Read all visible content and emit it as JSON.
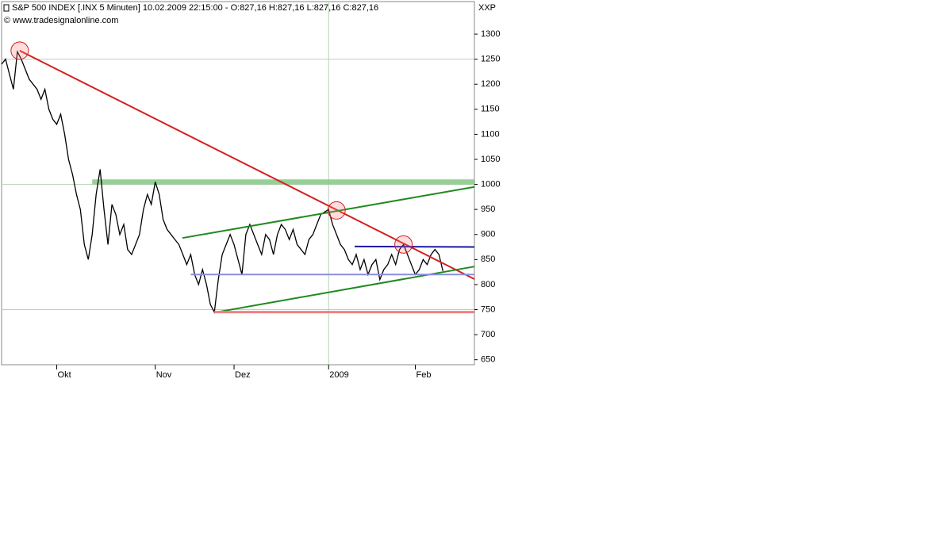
{
  "chart_data": {
    "type": "line",
    "title": "S&P 500 INDEX [.INX  5 Minuten] 10.02.2009 22:15:00 - O:827,16 H:827,16 L:827,16 C:827,16",
    "subtitle": "© www.tradesignalonline.com",
    "y_axis_label": "XXP",
    "xlim": [
      0,
      120
    ],
    "ylim": [
      640,
      1365
    ],
    "xticks": [
      {
        "value": 14,
        "label": "Okt"
      },
      {
        "value": 39,
        "label": "Nov"
      },
      {
        "value": 59,
        "label": "Dez"
      },
      {
        "value": 83,
        "label": "2009"
      },
      {
        "value": 105,
        "label": "Feb"
      }
    ],
    "yticks": [
      650,
      700,
      750,
      800,
      850,
      900,
      950,
      1000,
      1050,
      1100,
      1150,
      1200,
      1250,
      1300
    ],
    "grid_x": [
      83
    ],
    "grid_y": [
      750,
      1000,
      1250
    ],
    "series": [
      {
        "color": "#000000",
        "x": [
          0,
          1,
          2,
          3,
          4,
          5,
          6,
          7,
          8,
          9,
          10,
          11,
          12,
          13,
          14,
          15,
          16,
          17,
          18,
          19,
          20,
          21,
          22,
          23,
          24,
          25,
          26,
          27,
          28,
          29,
          30,
          31,
          32,
          33,
          34,
          35,
          36,
          37,
          38,
          39,
          40,
          41,
          42,
          43,
          44,
          45,
          46,
          47,
          48,
          49,
          50,
          51,
          52,
          53,
          54,
          55,
          56,
          57,
          58,
          59,
          60,
          61,
          62,
          63,
          64,
          65,
          66,
          67,
          68,
          69,
          70,
          71,
          72,
          73,
          74,
          75,
          76,
          77,
          78,
          79,
          80,
          81,
          82,
          83,
          84,
          85,
          86,
          87,
          88,
          89,
          90,
          91,
          92,
          93,
          94,
          95,
          96,
          97,
          98,
          99,
          100,
          101,
          102,
          103,
          104,
          105,
          106,
          107,
          108,
          109,
          110,
          111,
          112
        ],
        "values": [
          1240,
          1250,
          1220,
          1190,
          1265,
          1250,
          1230,
          1210,
          1200,
          1190,
          1170,
          1190,
          1150,
          1130,
          1120,
          1140,
          1100,
          1050,
          1020,
          980,
          950,
          880,
          850,
          900,
          980,
          1030,
          950,
          880,
          960,
          940,
          900,
          920,
          870,
          860,
          880,
          900,
          950,
          980,
          960,
          1005,
          980,
          930,
          910,
          900,
          890,
          880,
          860,
          840,
          860,
          820,
          800,
          830,
          800,
          760,
          745,
          810,
          860,
          880,
          900,
          880,
          850,
          820,
          900,
          920,
          900,
          880,
          860,
          900,
          890,
          860,
          900,
          920,
          910,
          890,
          910,
          880,
          870,
          860,
          890,
          900,
          920,
          940,
          945,
          950,
          920,
          900,
          880,
          870,
          850,
          840,
          860,
          830,
          850,
          820,
          840,
          850,
          810,
          830,
          840,
          860,
          840,
          870,
          880,
          860,
          840,
          820,
          830,
          850,
          840,
          860,
          870,
          860,
          827.16
        ]
      }
    ],
    "bands": [
      {
        "x": [
          23,
          120
        ],
        "y": [
          1000,
          1010
        ],
        "color": "#7cc47c"
      }
    ],
    "lines": [
      {
        "x": [
          4.6,
          120
        ],
        "y": [
          1267,
          811
        ],
        "color": "#d42020",
        "width": 2
      },
      {
        "x": [
          45.9,
          120
        ],
        "y": [
          893,
          995
        ],
        "color": "#1f8a1f",
        "width": 2
      },
      {
        "x": [
          53.9,
          120
        ],
        "y": [
          744,
          836
        ],
        "color": "#1f8a1f",
        "width": 2
      },
      {
        "x": [
          54,
          120
        ],
        "y": [
          745,
          745
        ],
        "color": "#f08080",
        "width": 3
      },
      {
        "x": [
          48,
          120
        ],
        "y": [
          820,
          820
        ],
        "color": "#8c8ce0",
        "width": 2
      },
      {
        "x": [
          89.6,
          120
        ],
        "y": [
          876,
          875
        ],
        "color": "#1a1aa0",
        "width": 2
      }
    ],
    "circles": [
      {
        "x": 4.6,
        "y": 1267
      },
      {
        "x": 85,
        "y": 948
      },
      {
        "x": 102,
        "y": 880
      }
    ]
  }
}
